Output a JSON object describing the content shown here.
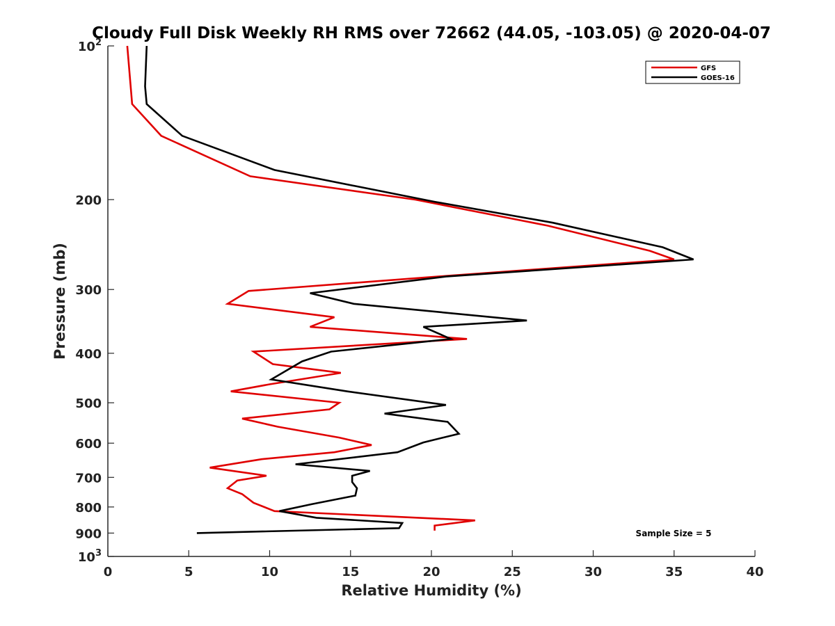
{
  "chart_data": {
    "type": "line",
    "orientation": "profile",
    "title": "Cloudy Full Disk Weekly RH RMS over 72662 (44.05, -103.05) @ 2020-04-07",
    "xlabel": "Relative Humidity (%)",
    "ylabel": "Pressure (mb)",
    "xlim": [
      0,
      40
    ],
    "ylim": [
      100,
      1000
    ],
    "y_scale": "log",
    "y_reversed": true,
    "x_ticks": [
      "0",
      "5",
      "10",
      "15",
      "20",
      "25",
      "30",
      "35",
      "40"
    ],
    "y_ticks": [
      {
        "value": 100,
        "base": "10",
        "exp": "2"
      },
      {
        "value": 200,
        "label": "200"
      },
      {
        "value": 300,
        "label": "300"
      },
      {
        "value": 400,
        "label": "400"
      },
      {
        "value": 500,
        "label": "500"
      },
      {
        "value": 600,
        "label": "600"
      },
      {
        "value": 700,
        "label": "700"
      },
      {
        "value": 800,
        "label": "800"
      },
      {
        "value": 900,
        "label": "900"
      },
      {
        "value": 1000,
        "base": "10",
        "exp": "3"
      }
    ],
    "legend_position": "top-right",
    "annotation": "Sample Size = 5",
    "series": [
      {
        "name": "GFS",
        "color": "#e00000",
        "points": [
          [
            1.2,
            100
          ],
          [
            1.5,
            130
          ],
          [
            3.3,
            150
          ],
          [
            8.8,
            180
          ],
          [
            19.0,
            200
          ],
          [
            27.2,
            225
          ],
          [
            33.5,
            252
          ],
          [
            35.0,
            262
          ],
          [
            21.0,
            282
          ],
          [
            8.7,
            302
          ],
          [
            7.4,
            320
          ],
          [
            14.0,
            340
          ],
          [
            12.5,
            355
          ],
          [
            22.2,
            375
          ],
          [
            9.0,
            397
          ],
          [
            10.2,
            420
          ],
          [
            14.4,
            437
          ],
          [
            10.0,
            460
          ],
          [
            7.6,
            475
          ],
          [
            14.3,
            500
          ],
          [
            13.7,
            515
          ],
          [
            8.3,
            537
          ],
          [
            10.5,
            557
          ],
          [
            14.3,
            585
          ],
          [
            16.3,
            605
          ],
          [
            14.0,
            625
          ],
          [
            9.5,
            645
          ],
          [
            6.3,
            670
          ],
          [
            9.8,
            695
          ],
          [
            8.0,
            710
          ],
          [
            7.4,
            735
          ],
          [
            8.3,
            755
          ],
          [
            9.0,
            785
          ],
          [
            10.3,
            815
          ],
          [
            22.7,
            850
          ],
          [
            20.2,
            870
          ],
          [
            20.2,
            890
          ]
        ]
      },
      {
        "name": "GOES-16",
        "color": "#000000",
        "points": [
          [
            2.4,
            100
          ],
          [
            2.3,
            120
          ],
          [
            2.4,
            130
          ],
          [
            4.6,
            150
          ],
          [
            10.3,
            175
          ],
          [
            20.2,
            202
          ],
          [
            27.5,
            222
          ],
          [
            34.3,
            248
          ],
          [
            36.2,
            262
          ],
          [
            20.9,
            283
          ],
          [
            12.5,
            305
          ],
          [
            15.2,
            320
          ],
          [
            25.9,
            345
          ],
          [
            19.5,
            355
          ],
          [
            21.2,
            375
          ],
          [
            13.8,
            397
          ],
          [
            12.0,
            415
          ],
          [
            10.1,
            450
          ],
          [
            14.8,
            475
          ],
          [
            20.9,
            505
          ],
          [
            17.1,
            525
          ],
          [
            21.0,
            545
          ],
          [
            21.7,
            575
          ],
          [
            19.5,
            598
          ],
          [
            17.9,
            625
          ],
          [
            11.6,
            660
          ],
          [
            16.2,
            680
          ],
          [
            15.1,
            695
          ],
          [
            15.1,
            715
          ],
          [
            15.4,
            735
          ],
          [
            15.3,
            760
          ],
          [
            12.6,
            790
          ],
          [
            10.6,
            815
          ],
          [
            12.9,
            840
          ],
          [
            18.2,
            860
          ],
          [
            18.0,
            880
          ],
          [
            5.5,
            900
          ]
        ]
      }
    ]
  }
}
